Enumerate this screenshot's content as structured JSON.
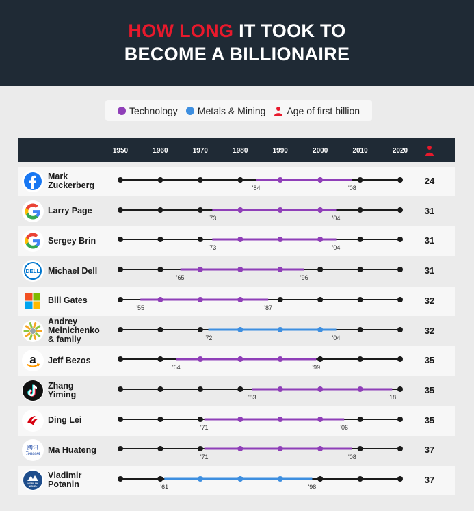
{
  "title": {
    "highlight": "HOW LONG",
    "rest_line1": " IT TOOK TO",
    "line2": "BECOME A  BILLIONAIRE"
  },
  "legend": {
    "technology": "Technology",
    "metals": "Metals & Mining",
    "age": "Age of first billion"
  },
  "colors": {
    "technology": "#8f3fb8",
    "metals": "#3e8fe0",
    "accent": "#e8192c",
    "dark": "#1f2a35",
    "track": "#1b1b1b"
  },
  "chart_data": {
    "type": "timeline",
    "x_ticks": [
      "1950",
      "1960",
      "1970",
      "1980",
      "1990",
      "2000",
      "2010",
      "2020"
    ],
    "xlim": [
      1950,
      2020
    ],
    "rows": [
      {
        "name": "Mark\nZuckerberg",
        "logo": "facebook-icon",
        "sector": "technology",
        "start": 1984,
        "end": 2008,
        "start_label": "'84",
        "end_label": "'08",
        "age": 24
      },
      {
        "name": "Larry Page",
        "logo": "google-icon",
        "sector": "technology",
        "start": 1973,
        "end": 2004,
        "start_label": "'73",
        "end_label": "'04",
        "age": 31
      },
      {
        "name": "Sergey Brin",
        "logo": "google-icon",
        "sector": "technology",
        "start": 1973,
        "end": 2004,
        "start_label": "'73",
        "end_label": "'04",
        "age": 31
      },
      {
        "name": "Michael Dell",
        "logo": "dell-icon",
        "sector": "technology",
        "start": 1965,
        "end": 1996,
        "start_label": "'65",
        "end_label": "'96",
        "age": 31
      },
      {
        "name": "Bill Gates",
        "logo": "microsoft-icon",
        "sector": "technology",
        "start": 1955,
        "end": 1987,
        "start_label": "'55",
        "end_label": "'87",
        "age": 32
      },
      {
        "name": "Andrey\nMelnichenko\n& family",
        "logo": "eurochem-icon",
        "sector": "metals",
        "start": 1972,
        "end": 2004,
        "start_label": "'72",
        "end_label": "'04",
        "age": 32
      },
      {
        "name": "Jeff Bezos",
        "logo": "amazon-icon",
        "sector": "technology",
        "start": 1964,
        "end": 1999,
        "start_label": "'64",
        "end_label": "'99",
        "age": 35
      },
      {
        "name": "Zhang\nYiming",
        "logo": "tiktok-icon",
        "sector": "technology",
        "start": 1983,
        "end": 2018,
        "start_label": "'83",
        "end_label": "'18",
        "age": 35
      },
      {
        "name": "Ding Lei",
        "logo": "netease-icon",
        "sector": "technology",
        "start": 1971,
        "end": 2006,
        "start_label": "'71",
        "end_label": "'06",
        "age": 35
      },
      {
        "name": "Ma Huateng",
        "logo": "tencent-icon",
        "sector": "technology",
        "start": 1971,
        "end": 2008,
        "start_label": "'71",
        "end_label": "'08",
        "age": 37
      },
      {
        "name": "Vladimir\nPotanin",
        "logo": "nornickel-icon",
        "sector": "metals",
        "start": 1961,
        "end": 1998,
        "start_label": "'61",
        "end_label": "'98",
        "age": 37
      }
    ]
  },
  "logo_text": {
    "dell": "DELL",
    "tencent_cn": "腾讯",
    "tencent": "Tencent",
    "nornickel": "NORILSK\nNICKEL"
  }
}
